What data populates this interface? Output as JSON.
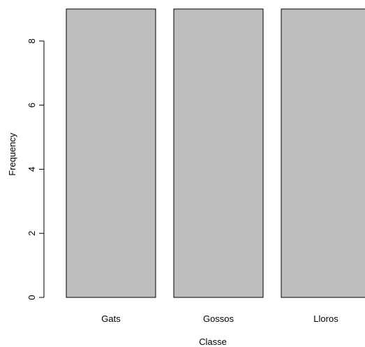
{
  "chart_data": {
    "type": "bar",
    "title": "",
    "xlabel": "Classe",
    "ylabel": "Frequency",
    "categories": [
      "Gats",
      "Gossos",
      "Lloros"
    ],
    "values": [
      9,
      9,
      9
    ],
    "yticks": [
      0,
      2,
      4,
      6,
      8
    ],
    "ylim": [
      0,
      9
    ],
    "grid": false,
    "legend": "none",
    "colors": {
      "bar_fill": "#bebebe",
      "bar_stroke": "#000000",
      "axis": "#000000",
      "background": "#ffffff"
    }
  }
}
